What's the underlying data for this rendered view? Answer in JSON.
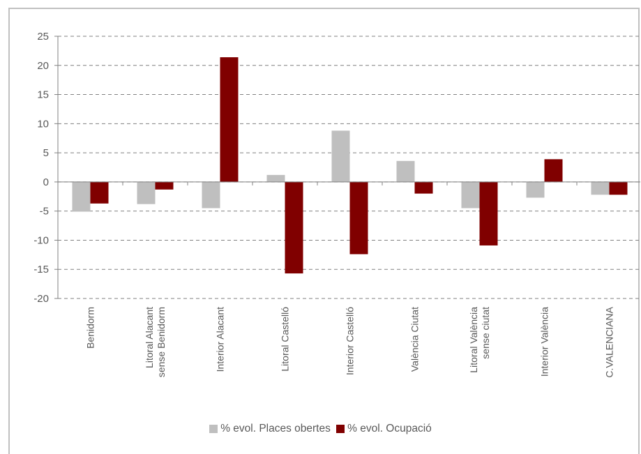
{
  "chart_data": {
    "type": "bar",
    "title": "",
    "categories": [
      [
        "Benidorm"
      ],
      [
        "Litoral Alacant",
        "sense Benidorm"
      ],
      [
        "Interior Alacant"
      ],
      [
        "Litoral Castelló"
      ],
      [
        "Interior Castelló"
      ],
      [
        "València Ciutat"
      ],
      [
        "Litoral València",
        "sense ciutat"
      ],
      [
        "Interior València"
      ],
      [
        "C.VALENCIANA"
      ]
    ],
    "series": [
      {
        "name": "% evol. Places obertes",
        "color": "#bfbfbf",
        "values": [
          -5.1,
          -3.8,
          -4.5,
          1.2,
          8.8,
          3.6,
          -4.5,
          -2.7,
          -2.2
        ]
      },
      {
        "name": "% evol. Ocupació",
        "color": "#800000",
        "values": [
          -3.7,
          -1.3,
          21.4,
          -15.7,
          -12.4,
          -2.0,
          -10.9,
          3.9,
          -2.2
        ]
      }
    ],
    "ylim": [
      -20,
      25
    ],
    "yticks": [
      "25",
      "20",
      "15",
      "10",
      "5",
      "0",
      "-5",
      "-10",
      "-15",
      "-20"
    ],
    "ytick_values": [
      25,
      20,
      15,
      10,
      5,
      0,
      -5,
      -10,
      -15,
      -20
    ],
    "grid": true,
    "legend_position": "bottom"
  }
}
